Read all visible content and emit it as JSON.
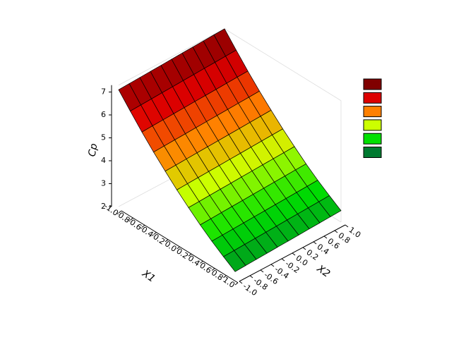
{
  "chart_data": {
    "type": "surface3d",
    "zlabel": "Cp",
    "xlabel": "X1",
    "ylabel": "X2",
    "x1": [
      -1,
      -0.8,
      -0.6,
      -0.4,
      -0.2,
      0,
      0.2,
      0.4,
      0.6,
      0.8,
      1
    ],
    "x2": [
      -1,
      -0.8,
      -0.6,
      -0.4,
      -0.2,
      0,
      0.2,
      0.4,
      0.6,
      0.8,
      1
    ],
    "z": [
      [
        7.1,
        7.12,
        7.14,
        7.16,
        7.18,
        7.2,
        7.22,
        7.24,
        7.26,
        7.28,
        7.3
      ],
      [
        6.48,
        6.5,
        6.52,
        6.54,
        6.56,
        6.58,
        6.6,
        6.62,
        6.64,
        6.66,
        6.68
      ],
      [
        5.88,
        5.9,
        5.92,
        5.94,
        5.96,
        5.98,
        6,
        6.02,
        6.04,
        6.06,
        6.08
      ],
      [
        5.32,
        5.34,
        5.36,
        5.38,
        5.4,
        5.42,
        5.44,
        5.46,
        5.48,
        5.5,
        5.52
      ],
      [
        4.8,
        4.82,
        4.84,
        4.86,
        4.88,
        4.9,
        4.92,
        4.94,
        4.96,
        4.98,
        5
      ],
      [
        4.3,
        4.32,
        4.34,
        4.36,
        4.38,
        4.4,
        4.42,
        4.44,
        4.46,
        4.48,
        4.5
      ],
      [
        3.84,
        3.86,
        3.88,
        3.9,
        3.92,
        3.94,
        3.96,
        3.98,
        4,
        4.02,
        4.04
      ],
      [
        3.4,
        3.42,
        3.44,
        3.46,
        3.48,
        3.5,
        3.52,
        3.54,
        3.56,
        3.58,
        3.6
      ],
      [
        3,
        3.02,
        3.04,
        3.06,
        3.08,
        3.1,
        3.12,
        3.14,
        3.16,
        3.18,
        3.2
      ],
      [
        2.64,
        2.66,
        2.68,
        2.7,
        2.72,
        2.74,
        2.76,
        2.78,
        2.8,
        2.82,
        2.84
      ],
      [
        2.3,
        2.32,
        2.34,
        2.36,
        2.38,
        2.4,
        2.42,
        2.44,
        2.46,
        2.48,
        2.5
      ]
    ],
    "xlim": [
      -1,
      1
    ],
    "ylim": [
      -1,
      1
    ],
    "zlim": [
      2,
      7.3
    ],
    "xticks": [
      {
        "value": -1,
        "label": "-1.0"
      },
      -0.8,
      -0.6,
      -0.4,
      -0.2,
      {
        "value": 0,
        "label": "0.0"
      },
      0.2,
      0.4,
      0.6,
      0.8,
      {
        "value": 1,
        "label": "1.0"
      }
    ],
    "yticks": [
      {
        "value": -1,
        "label": "-1.0"
      },
      -0.8,
      -0.6,
      -0.4,
      -0.2,
      {
        "value": 0,
        "label": "0.0"
      },
      0.2,
      0.4,
      0.6,
      0.8,
      {
        "value": 1,
        "label": "1.0"
      }
    ],
    "zticks": [
      2,
      3,
      4,
      5,
      6,
      7
    ],
    "colormap": [
      "#800000",
      "#dd0000",
      "#ff8000",
      "#ccff00",
      "#00e000",
      "#007a30"
    ]
  }
}
